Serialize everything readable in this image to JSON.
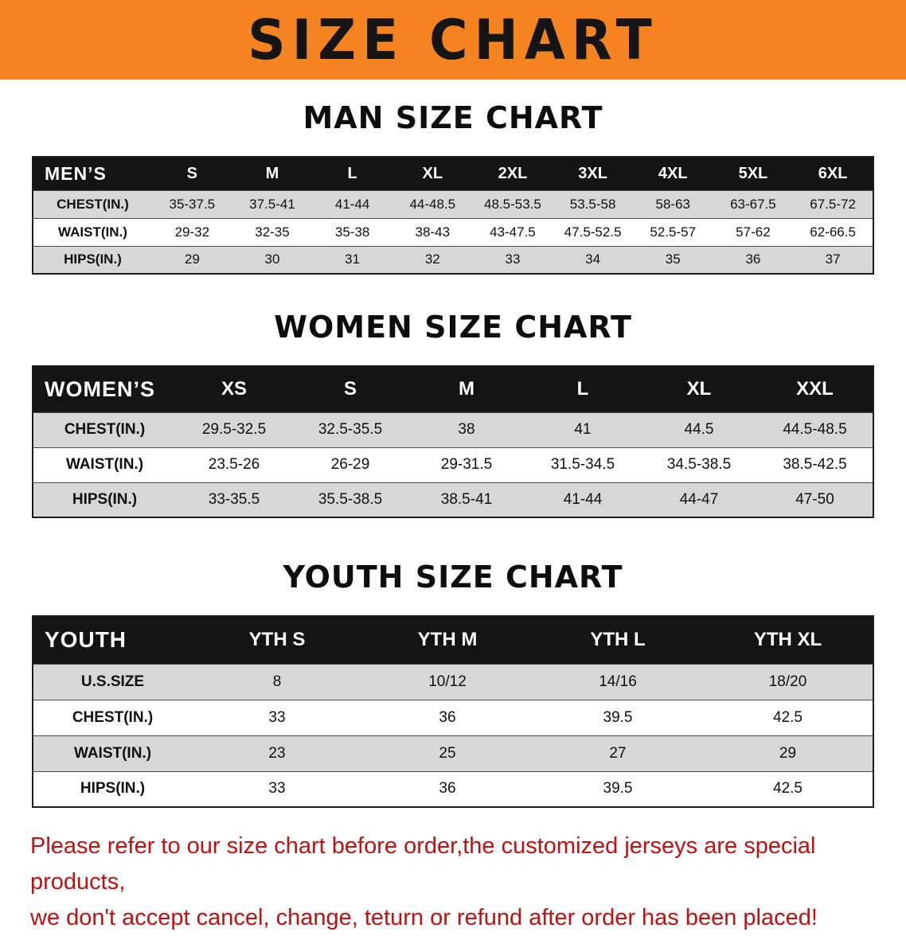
{
  "banner": {
    "title": "SIZE CHART",
    "bg_color": "#F5831F",
    "text_color": "#151515"
  },
  "men": {
    "heading": "MAN SIZE CHART",
    "header": [
      "MEN’S",
      "S",
      "M",
      "L",
      "XL",
      "2XL",
      "3XL",
      "4XL",
      "5XL",
      "6XL"
    ],
    "rows": [
      [
        "CHEST(IN.)",
        "35-37.5",
        "37.5-41",
        "41-44",
        "44-48.5",
        "48.5-53.5",
        "53.5-58",
        "58-63",
        "63-67.5",
        "67.5-72"
      ],
      [
        "WAIST(IN.)",
        "29-32",
        "32-35",
        "35-38",
        "38-43",
        "43-47.5",
        "47.5-52.5",
        "52.5-57",
        "57-62",
        "62-66.5"
      ],
      [
        "HIPS(IN.)",
        "29",
        "30",
        "31",
        "32",
        "33",
        "34",
        "35",
        "36",
        "37"
      ]
    ]
  },
  "women": {
    "heading": "WOMEN SIZE CHART",
    "header": [
      "WOMEN’S",
      "XS",
      "S",
      "M",
      "L",
      "XL",
      "XXL"
    ],
    "rows": [
      [
        "CHEST(IN.)",
        "29.5-32.5",
        "32.5-35.5",
        "38",
        "41",
        "44.5",
        "44.5-48.5"
      ],
      [
        "WAIST(IN.)",
        "23.5-26",
        "26-29",
        "29-31.5",
        "31.5-34.5",
        "34.5-38.5",
        "38.5-42.5"
      ],
      [
        "HIPS(IN.)",
        "33-35.5",
        "35.5-38.5",
        "38.5-41",
        "41-44",
        "44-47",
        "47-50"
      ]
    ]
  },
  "youth": {
    "heading": "YOUTH SIZE CHART",
    "header": [
      "YOUTH",
      "YTH S",
      "YTH M",
      "YTH L",
      "YTH XL"
    ],
    "rows": [
      [
        "U.S.SIZE",
        "8",
        "10/12",
        "14/16",
        "18/20"
      ],
      [
        "CHEST(IN.)",
        "33",
        "36",
        "39.5",
        "42.5"
      ],
      [
        "WAIST(IN.)",
        "23",
        "25",
        "27",
        "29"
      ],
      [
        "HIPS(IN.)",
        "33",
        "36",
        "39.5",
        "42.5"
      ]
    ]
  },
  "footer": {
    "line1": "Please refer to our size chart before order,the customized jerseys are special products,",
    "line2": "we don't accept cancel, change, teturn or refund after order has been placed!",
    "text_color": "#C01010"
  }
}
